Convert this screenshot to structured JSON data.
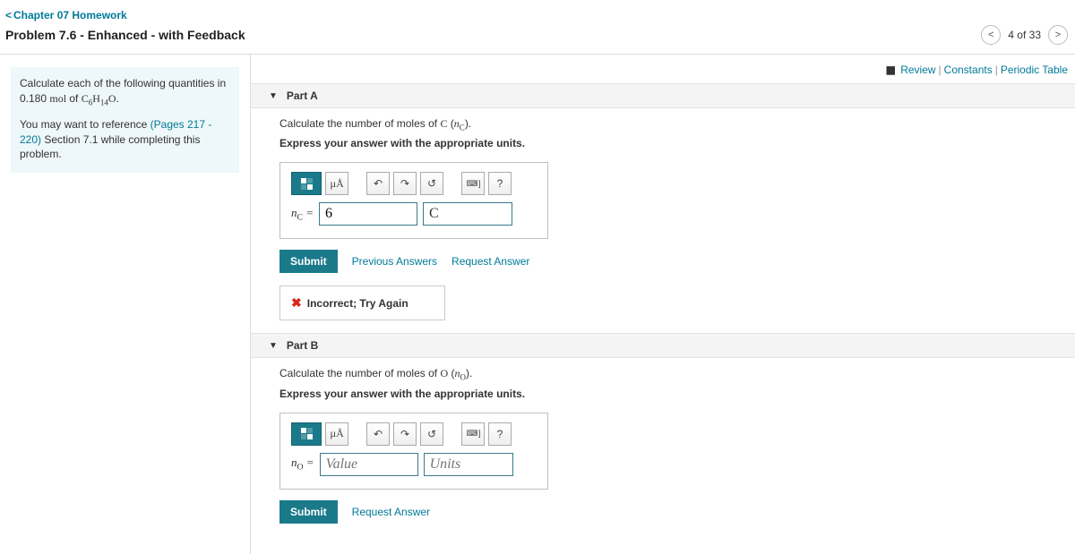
{
  "nav": {
    "back_label": "Chapter 07 Homework",
    "problem_title": "Problem 7.6 - Enhanced - with Feedback",
    "page_current": 4,
    "page_total": 33,
    "page_text": "4 of 33"
  },
  "tools": {
    "review": "Review",
    "constants": "Constants",
    "periodic": "Periodic Table"
  },
  "intro": {
    "line1_pre": "Calculate each of the following quantities in 0.180 ",
    "mol_of": "mol",
    "of_txt": " of ",
    "formula_html": "C6H14O",
    "line2_pre": "You may want to reference ",
    "line2_link": "(Pages 217 - 220)",
    "line2_post": " Section 7.1 while completing this problem."
  },
  "partA": {
    "header": "Part A",
    "q_pre": "Calculate the number of moles of ",
    "q_sym": "C",
    "q_paren_var": "nC",
    "instr": "Express your answer with the appropriate units.",
    "lhs_var": "nC",
    "value": "6",
    "unit": "C",
    "submit": "Submit",
    "prev_answers": "Previous Answers",
    "request": "Request Answer",
    "feedback": "Incorrect; Try Again"
  },
  "partB": {
    "header": "Part B",
    "q_pre": "Calculate the number of moles of ",
    "q_sym": "O",
    "q_paren_var": "nO",
    "instr": "Express your answer with the appropriate units.",
    "lhs_var": "nO",
    "value_placeholder": "Value",
    "unit_placeholder": "Units",
    "submit": "Submit",
    "request": "Request Answer"
  },
  "toolbar": {
    "mu_label": "µÅ",
    "undo": "↶",
    "redo": "↷",
    "reset": "↺",
    "keyboard": "⌨ ]",
    "help": "?"
  },
  "colors": {
    "link": "#007a99",
    "accent": "#1a7a8a",
    "error": "#d9261c",
    "intro_bg": "#eef7f9"
  }
}
